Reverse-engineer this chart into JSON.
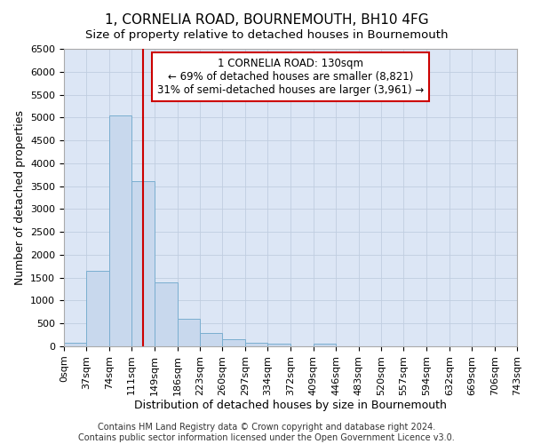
{
  "title": "1, CORNELIA ROAD, BOURNEMOUTH, BH10 4FG",
  "subtitle": "Size of property relative to detached houses in Bournemouth",
  "xlabel": "Distribution of detached houses by size in Bournemouth",
  "ylabel": "Number of detached properties",
  "bin_labels": [
    "0sqm",
    "37sqm",
    "74sqm",
    "111sqm",
    "149sqm",
    "186sqm",
    "223sqm",
    "260sqm",
    "297sqm",
    "334sqm",
    "372sqm",
    "409sqm",
    "446sqm",
    "483sqm",
    "520sqm",
    "557sqm",
    "594sqm",
    "632sqm",
    "669sqm",
    "706sqm",
    "743sqm"
  ],
  "bin_edges": [
    0,
    37,
    74,
    111,
    149,
    186,
    223,
    260,
    297,
    334,
    372,
    409,
    446,
    483,
    520,
    557,
    594,
    632,
    669,
    706,
    743
  ],
  "bar_heights": [
    75,
    1650,
    5050,
    3600,
    1400,
    600,
    300,
    150,
    75,
    60,
    0,
    60,
    0,
    0,
    0,
    0,
    0,
    0,
    0,
    0
  ],
  "bar_color": "#c8d8ed",
  "bar_edge_color": "#7aaed0",
  "property_size": 130,
  "red_line_color": "#cc0000",
  "annotation_line1": "1 CORNELIA ROAD: 130sqm",
  "annotation_line2": "← 69% of detached houses are smaller (8,821)",
  "annotation_line3": "31% of semi-detached houses are larger (3,961) →",
  "annotation_box_color": "#ffffff",
  "annotation_box_edge_color": "#cc0000",
  "ylim": [
    0,
    6500
  ],
  "yticks": [
    0,
    500,
    1000,
    1500,
    2000,
    2500,
    3000,
    3500,
    4000,
    4500,
    5000,
    5500,
    6000,
    6500
  ],
  "plot_bg_color": "#dce6f5",
  "fig_bg_color": "#ffffff",
  "grid_color": "#c0cde0",
  "footer_line1": "Contains HM Land Registry data © Crown copyright and database right 2024.",
  "footer_line2": "Contains public sector information licensed under the Open Government Licence v3.0.",
  "title_fontsize": 11,
  "subtitle_fontsize": 9.5,
  "xlabel_fontsize": 9,
  "ylabel_fontsize": 9,
  "tick_fontsize": 8,
  "annotation_fontsize": 8.5,
  "footer_fontsize": 7
}
